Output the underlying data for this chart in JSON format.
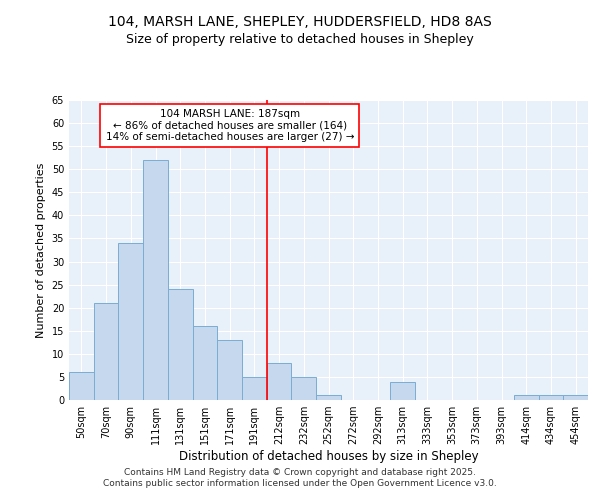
{
  "title1": "104, MARSH LANE, SHEPLEY, HUDDERSFIELD, HD8 8AS",
  "title2": "Size of property relative to detached houses in Shepley",
  "xlabel": "Distribution of detached houses by size in Shepley",
  "ylabel": "Number of detached properties",
  "categories": [
    "50sqm",
    "70sqm",
    "90sqm",
    "111sqm",
    "131sqm",
    "151sqm",
    "171sqm",
    "191sqm",
    "212sqm",
    "232sqm",
    "252sqm",
    "272sqm",
    "292sqm",
    "313sqm",
    "333sqm",
    "353sqm",
    "373sqm",
    "393sqm",
    "414sqm",
    "434sqm",
    "454sqm"
  ],
  "values": [
    6,
    21,
    34,
    52,
    24,
    16,
    13,
    5,
    8,
    5,
    1,
    0,
    0,
    4,
    0,
    0,
    0,
    0,
    1,
    1,
    1
  ],
  "bar_color": "#c5d8ee",
  "bar_edge_color": "#7aadd4",
  "vline_x": 7.5,
  "vline_color": "red",
  "annotation_text": "104 MARSH LANE: 187sqm\n← 86% of detached houses are smaller (164)\n14% of semi-detached houses are larger (27) →",
  "annotation_box_color": "white",
  "annotation_box_edge": "red",
  "ylim": [
    0,
    65
  ],
  "yticks": [
    0,
    5,
    10,
    15,
    20,
    25,
    30,
    35,
    40,
    45,
    50,
    55,
    60,
    65
  ],
  "background_color": "#dde8f5",
  "plot_bg_color": "#e8f0fa",
  "footer": "Contains HM Land Registry data © Crown copyright and database right 2025.\nContains public sector information licensed under the Open Government Licence v3.0.",
  "title_fontsize": 10,
  "subtitle_fontsize": 9,
  "xlabel_fontsize": 8.5,
  "ylabel_fontsize": 8,
  "tick_fontsize": 7,
  "annotation_fontsize": 7.5,
  "footer_fontsize": 6.5
}
